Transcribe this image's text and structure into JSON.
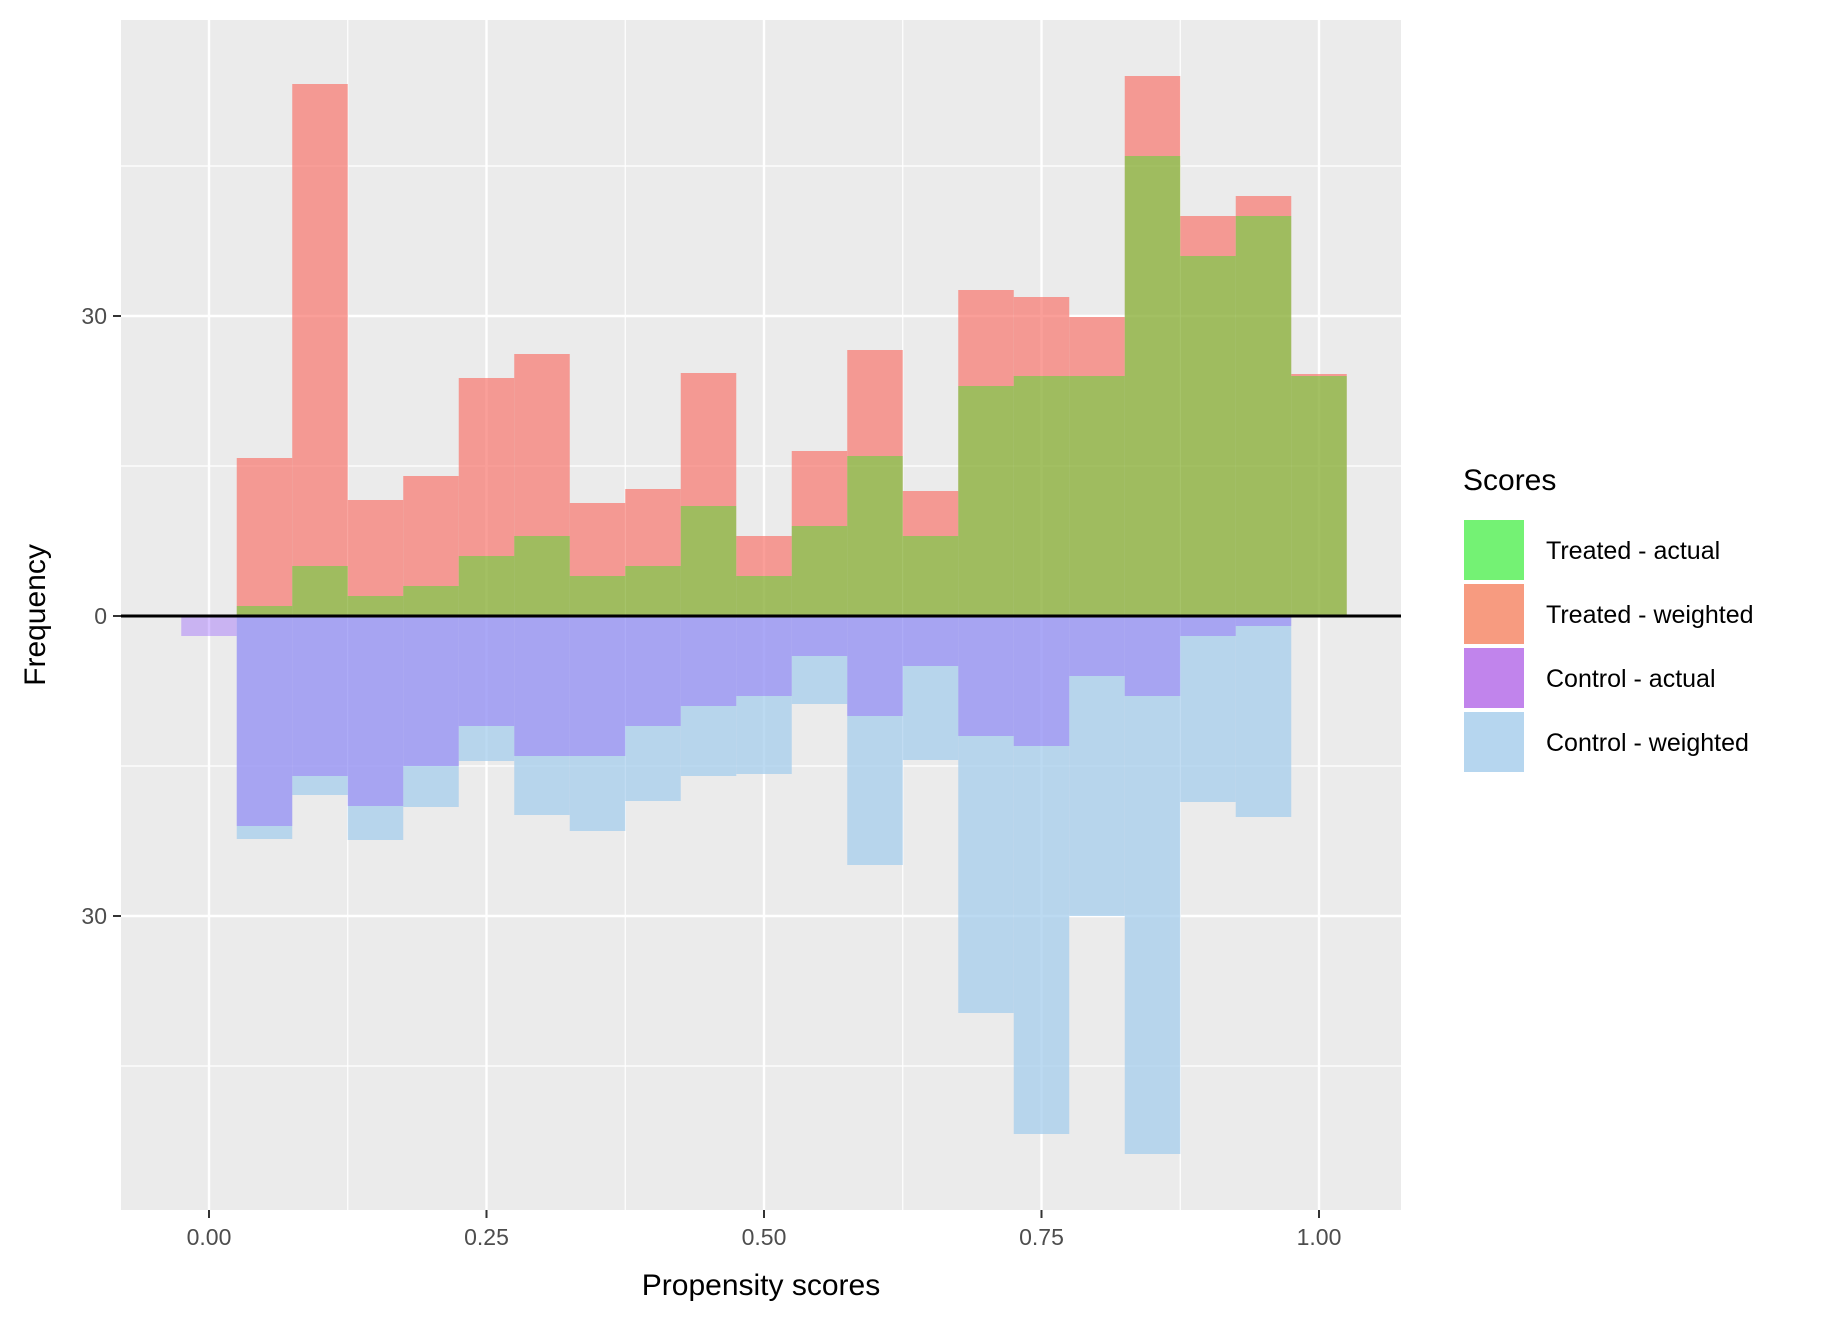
{
  "chart_data": {
    "type": "bar",
    "title": "",
    "xlabel": "Propensity scores",
    "ylabel": "Frequency",
    "xlim": [
      -0.08,
      1.08
    ],
    "ylim": [
      -59,
      59
    ],
    "x_ticks": [
      0.0,
      0.25,
      0.5,
      0.75,
      1.0
    ],
    "x_tick_labels": [
      "0.00",
      "0.25",
      "0.50",
      "0.75",
      "1.00"
    ],
    "y_ticks": [
      30,
      0,
      -30
    ],
    "y_tick_labels": [
      "30",
      "0",
      "30"
    ],
    "grid": true,
    "bin_width": 0.05,
    "bin_centers": [
      0.0,
      0.05,
      0.1,
      0.15,
      0.2,
      0.25,
      0.3,
      0.35,
      0.4,
      0.45,
      0.5,
      0.55,
      0.6,
      0.65,
      0.7,
      0.75,
      0.8,
      0.85,
      0.9,
      0.95,
      1.0
    ],
    "series": [
      {
        "name": "Treated - actual",
        "direction": "up",
        "color": "#00e600",
        "values": [
          0,
          1,
          5,
          2,
          3,
          6,
          8,
          4,
          5,
          11,
          4,
          9,
          16,
          8,
          23,
          24,
          24,
          46,
          36,
          40,
          24
        ]
      },
      {
        "name": "Treated - weighted",
        "direction": "up",
        "color": "#f8766d",
        "values": [
          0,
          15.8,
          53.2,
          11.6,
          14,
          23.8,
          26.2,
          11.3,
          12.7,
          24.3,
          8,
          16.5,
          26.6,
          12.5,
          32.6,
          31.9,
          29.9,
          54,
          40,
          42,
          24.2
        ]
      },
      {
        "name": "Control - actual",
        "direction": "down",
        "color": "#9a45e8",
        "values": [
          2,
          21,
          16,
          19,
          15,
          11,
          14,
          14,
          11,
          9,
          8,
          4,
          10,
          5,
          12,
          13,
          6,
          8,
          2,
          1,
          0
        ]
      },
      {
        "name": "Control - weighted",
        "direction": "down",
        "color": "#a6cdec",
        "values": [
          0,
          22.3,
          17.9,
          22.4,
          19.1,
          14.5,
          19.9,
          21.5,
          18.5,
          16,
          15.8,
          8.8,
          24.9,
          14.4,
          39.7,
          51.8,
          30,
          53.8,
          18.6,
          20.1,
          0
        ]
      }
    ],
    "legend": {
      "title": "Scores",
      "position": "right",
      "entries": [
        "Treated - actual",
        "Treated - weighted",
        "Control - actual",
        "Control - weighted"
      ]
    }
  }
}
